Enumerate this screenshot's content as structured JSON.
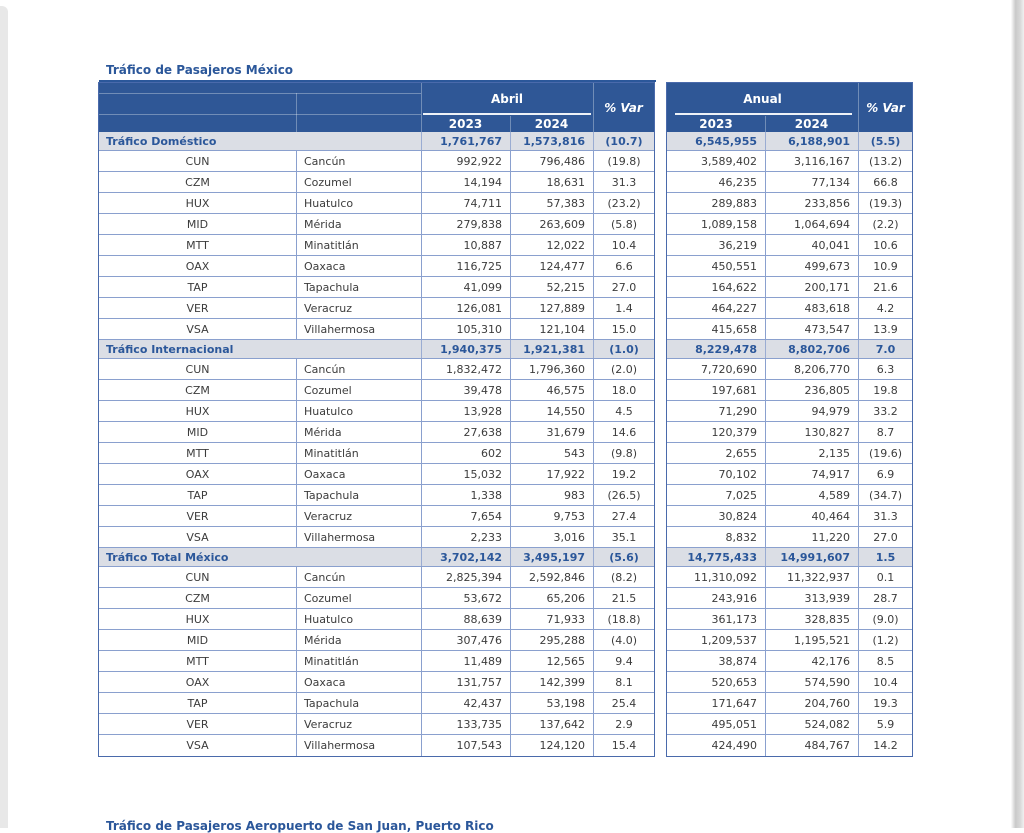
{
  "page": {
    "title": "Tráfico de Pasajeros México",
    "footer_title": "Tráfico de Pasajeros Aeropuerto de San Juan, Puerto Rico"
  },
  "colors": {
    "header_blue": "#2F5796",
    "accent_blue": "#2B579A",
    "section_row_bg": "#DBDEE5",
    "grid_border_blue": "#8AA0CE",
    "body_text": "#3C3C3C"
  },
  "table": {
    "header": {
      "april": "Abril",
      "annual": "Anual",
      "y2023": "2023",
      "y2024": "2024",
      "var_label": "% Var"
    },
    "sections": [
      {
        "label": "Tráfico Doméstico",
        "april": [
          "1,761,767",
          "1,573,816",
          "(10.7)"
        ],
        "annual": [
          "6,545,955",
          "6,188,901",
          "(5.5)"
        ],
        "rows": [
          {
            "code": "CUN",
            "name": "Cancún",
            "april": [
              "992,922",
              "796,486",
              "(19.8)"
            ],
            "annual": [
              "3,589,402",
              "3,116,167",
              "(13.2)"
            ]
          },
          {
            "code": "CZM",
            "name": "Cozumel",
            "april": [
              "14,194",
              "18,631",
              "31.3"
            ],
            "annual": [
              "46,235",
              "77,134",
              "66.8"
            ]
          },
          {
            "code": "HUX",
            "name": "Huatulco",
            "april": [
              "74,711",
              "57,383",
              "(23.2)"
            ],
            "annual": [
              "289,883",
              "233,856",
              "(19.3)"
            ]
          },
          {
            "code": "MID",
            "name": "Mérida",
            "april": [
              "279,838",
              "263,609",
              "(5.8)"
            ],
            "annual": [
              "1,089,158",
              "1,064,694",
              "(2.2)"
            ]
          },
          {
            "code": "MTT",
            "name": "Minatitlán",
            "april": [
              "10,887",
              "12,022",
              "10.4"
            ],
            "annual": [
              "36,219",
              "40,041",
              "10.6"
            ]
          },
          {
            "code": "OAX",
            "name": "Oaxaca",
            "april": [
              "116,725",
              "124,477",
              "6.6"
            ],
            "annual": [
              "450,551",
              "499,673",
              "10.9"
            ]
          },
          {
            "code": "TAP",
            "name": "Tapachula",
            "april": [
              "41,099",
              "52,215",
              "27.0"
            ],
            "annual": [
              "164,622",
              "200,171",
              "21.6"
            ]
          },
          {
            "code": "VER",
            "name": "Veracruz",
            "april": [
              "126,081",
              "127,889",
              "1.4"
            ],
            "annual": [
              "464,227",
              "483,618",
              "4.2"
            ]
          },
          {
            "code": "VSA",
            "name": "Villahermosa",
            "april": [
              "105,310",
              "121,104",
              "15.0"
            ],
            "annual": [
              "415,658",
              "473,547",
              "13.9"
            ]
          }
        ]
      },
      {
        "label": "Tráfico Internacional",
        "april": [
          "1,940,375",
          "1,921,381",
          "(1.0)"
        ],
        "annual": [
          "8,229,478",
          "8,802,706",
          "7.0"
        ],
        "rows": [
          {
            "code": "CUN",
            "name": "Cancún",
            "april": [
              "1,832,472",
              "1,796,360",
              "(2.0)"
            ],
            "annual": [
              "7,720,690",
              "8,206,770",
              "6.3"
            ]
          },
          {
            "code": "CZM",
            "name": "Cozumel",
            "april": [
              "39,478",
              "46,575",
              "18.0"
            ],
            "annual": [
              "197,681",
              "236,805",
              "19.8"
            ]
          },
          {
            "code": "HUX",
            "name": "Huatulco",
            "april": [
              "13,928",
              "14,550",
              "4.5"
            ],
            "annual": [
              "71,290",
              "94,979",
              "33.2"
            ]
          },
          {
            "code": "MID",
            "name": "Mérida",
            "april": [
              "27,638",
              "31,679",
              "14.6"
            ],
            "annual": [
              "120,379",
              "130,827",
              "8.7"
            ]
          },
          {
            "code": "MTT",
            "name": "Minatitlán",
            "april": [
              "602",
              "543",
              "(9.8)"
            ],
            "annual": [
              "2,655",
              "2,135",
              "(19.6)"
            ]
          },
          {
            "code": "OAX",
            "name": "Oaxaca",
            "april": [
              "15,032",
              "17,922",
              "19.2"
            ],
            "annual": [
              "70,102",
              "74,917",
              "6.9"
            ]
          },
          {
            "code": "TAP",
            "name": "Tapachula",
            "april": [
              "1,338",
              "983",
              "(26.5)"
            ],
            "annual": [
              "7,025",
              "4,589",
              "(34.7)"
            ]
          },
          {
            "code": "VER",
            "name": "Veracruz",
            "april": [
              "7,654",
              "9,753",
              "27.4"
            ],
            "annual": [
              "30,824",
              "40,464",
              "31.3"
            ]
          },
          {
            "code": "VSA",
            "name": "Villahermosa",
            "april": [
              "2,233",
              "3,016",
              "35.1"
            ],
            "annual": [
              "8,832",
              "11,220",
              "27.0"
            ]
          }
        ]
      },
      {
        "label": "Tráfico Total México",
        "april": [
          "3,702,142",
          "3,495,197",
          "(5.6)"
        ],
        "annual": [
          "14,775,433",
          "14,991,607",
          "1.5"
        ],
        "rows": [
          {
            "code": "CUN",
            "name": "Cancún",
            "april": [
              "2,825,394",
              "2,592,846",
              "(8.2)"
            ],
            "annual": [
              "11,310,092",
              "11,322,937",
              "0.1"
            ]
          },
          {
            "code": "CZM",
            "name": "Cozumel",
            "april": [
              "53,672",
              "65,206",
              "21.5"
            ],
            "annual": [
              "243,916",
              "313,939",
              "28.7"
            ]
          },
          {
            "code": "HUX",
            "name": "Huatulco",
            "april": [
              "88,639",
              "71,933",
              "(18.8)"
            ],
            "annual": [
              "361,173",
              "328,835",
              "(9.0)"
            ]
          },
          {
            "code": "MID",
            "name": "Mérida",
            "april": [
              "307,476",
              "295,288",
              "(4.0)"
            ],
            "annual": [
              "1,209,537",
              "1,195,521",
              "(1.2)"
            ]
          },
          {
            "code": "MTT",
            "name": "Minatitlán",
            "april": [
              "11,489",
              "12,565",
              "9.4"
            ],
            "annual": [
              "38,874",
              "42,176",
              "8.5"
            ]
          },
          {
            "code": "OAX",
            "name": "Oaxaca",
            "april": [
              "131,757",
              "142,399",
              "8.1"
            ],
            "annual": [
              "520,653",
              "574,590",
              "10.4"
            ]
          },
          {
            "code": "TAP",
            "name": "Tapachula",
            "april": [
              "42,437",
              "53,198",
              "25.4"
            ],
            "annual": [
              "171,647",
              "204,760",
              "19.3"
            ]
          },
          {
            "code": "VER",
            "name": "Veracruz",
            "april": [
              "133,735",
              "137,642",
              "2.9"
            ],
            "annual": [
              "495,051",
              "524,082",
              "5.9"
            ]
          },
          {
            "code": "VSA",
            "name": "Villahermosa",
            "april": [
              "107,543",
              "124,120",
              "15.4"
            ],
            "annual": [
              "424,490",
              "484,767",
              "14.2"
            ]
          }
        ]
      }
    ]
  }
}
